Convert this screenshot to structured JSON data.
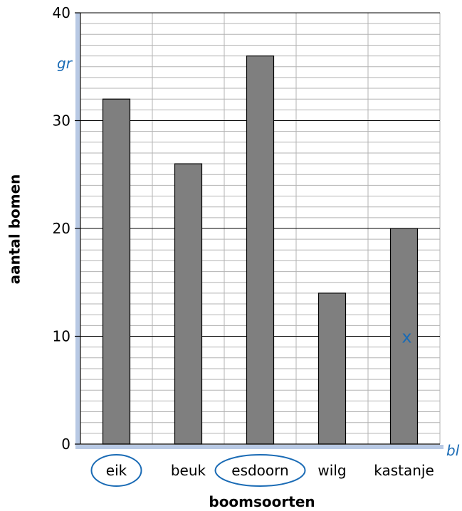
{
  "chart_data": {
    "type": "bar",
    "categories": [
      "eik",
      "beuk",
      "esdoorn",
      "wilg",
      "kastanje"
    ],
    "values": [
      32,
      26,
      36,
      14,
      20
    ],
    "xlabel": "boomsoorten",
    "ylabel": "aantal bomen",
    "ylim": [
      0,
      40
    ],
    "yticks": [
      0,
      10,
      20,
      30,
      40
    ],
    "minor_grid_step": 1,
    "bar_color": "#7f7f7f",
    "grid": true,
    "annotations": {
      "top_left_label": "gr",
      "bottom_right_label": "bl",
      "cross_mark": {
        "text": "x",
        "category": "kastanje",
        "value": 10
      },
      "circled_categories": [
        "eik",
        "esdoorn"
      ],
      "color": "#1a6bb5"
    }
  }
}
